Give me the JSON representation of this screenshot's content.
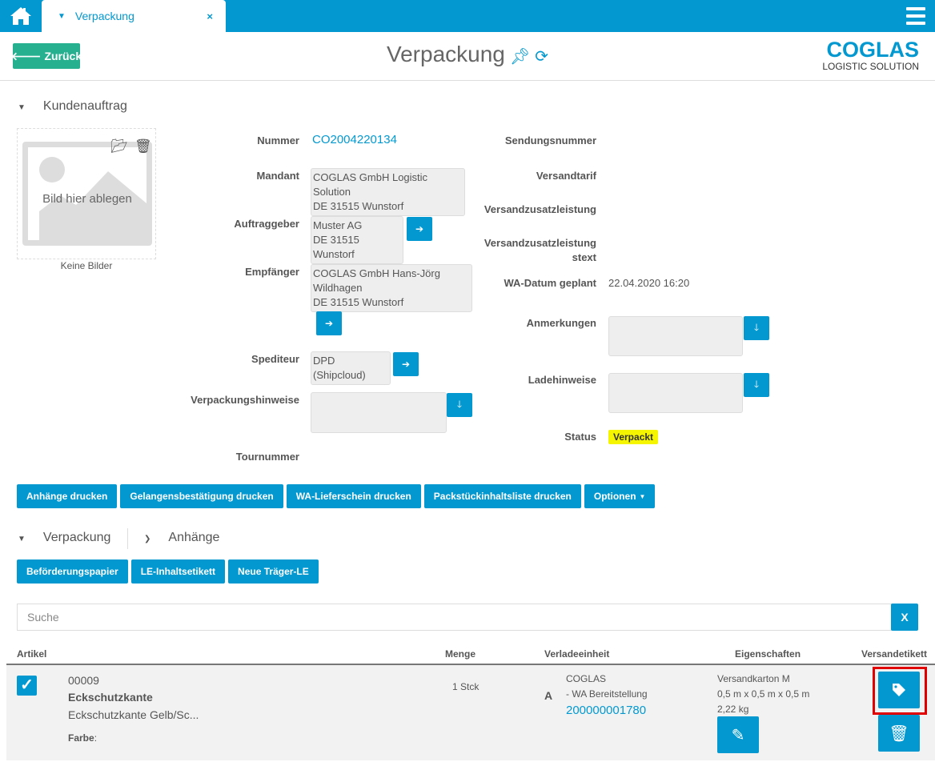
{
  "colors": {
    "primary": "#0399d0",
    "back_button": "#26b08f",
    "status_badge": "#f5f500",
    "highlight": "#e00000"
  },
  "tab": {
    "label": "Verpackung",
    "close": "×"
  },
  "header": {
    "back_label": "Zurück",
    "title": "Verpackung",
    "logo_main": "COGLAS",
    "logo_sub": "LOGISTIC SOLUTION"
  },
  "kundenauftrag": {
    "section_title": "Kundenauftrag",
    "image_drop": "Bild hier ablegen",
    "no_images": "Keine Bilder",
    "nummer_label": "Nummer",
    "nummer": "CO2004220134",
    "mandant_label": "Mandant",
    "mandant": [
      "COGLAS GmbH Logistic Solution",
      "DE 31515 Wunstorf"
    ],
    "auftraggeber_label": "Auftraggeber",
    "auftraggeber": [
      "Muster AG",
      "DE 31515 Wunstorf"
    ],
    "empfaenger_label": "Empfänger",
    "empfaenger": [
      "COGLAS GmbH Hans-Jörg",
      "Wildhagen",
      "DE 31515 Wunstorf"
    ],
    "spediteur_label": "Spediteur",
    "spediteur": "DPD (Shipcloud)",
    "verpackungshinweise_label": "Verpackungshinweise",
    "tournummer_label": "Tournummer",
    "sendungsnummer_label": "Sendungsnummer",
    "versandtarif_label": "Versandtarif",
    "versandzusatz_label": "Versandzusatzleistung",
    "versandzusatz_text_label": [
      "Versandzusatzleistung",
      "stext"
    ],
    "wa_datum_label": "WA-Datum geplant",
    "wa_datum": "22.04.2020 16:20",
    "anmerkungen_label": "Anmerkungen",
    "ladehinweise_label": "Ladehinweise",
    "status_label": "Status",
    "status": "Verpackt"
  },
  "print_buttons": [
    "Anhänge drucken",
    "Gelangensbestätigung drucken",
    "WA-Lieferschein drucken",
    "Packstückinhaltsliste drucken",
    "Optionen"
  ],
  "tabs2": {
    "verpackung": "Verpackung",
    "anhaenge": "Anhänge"
  },
  "pack_buttons": [
    "Beförderungspapier",
    "LE-Inhaltsetikett",
    "Neue Träger-LE"
  ],
  "search": {
    "placeholder": "Suche",
    "clear": "X"
  },
  "table": {
    "headers": [
      "Artikel",
      "Menge",
      "Verladeeinheit",
      "Eigenschaften",
      "Versandetikett"
    ],
    "rows": [
      {
        "checked": true,
        "nummer": "00009",
        "name": "Eckschutzkante",
        "beschreibung": "Eckschutzkante Gelb/Sc...",
        "farbe_label": "Farbe",
        "farbe_suffix": ":",
        "menge": "1 Stck",
        "le_letter": "A",
        "le_name": "COGLAS",
        "le_place": "- WA Bereitstellung",
        "le_number": "200000001780",
        "eig_name": "Versandkarton M",
        "eig_dim": "0,5 m x 0,5 m x 0,5 m",
        "eig_weight": "2,22 kg"
      }
    ]
  }
}
